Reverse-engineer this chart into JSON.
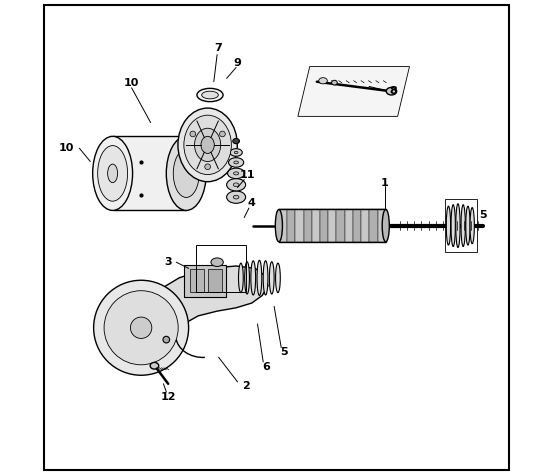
{
  "background_color": "#ffffff",
  "border_color": "#000000",
  "line_color": "#000000",
  "figsize": [
    5.53,
    4.75
  ],
  "dpi": 100
}
